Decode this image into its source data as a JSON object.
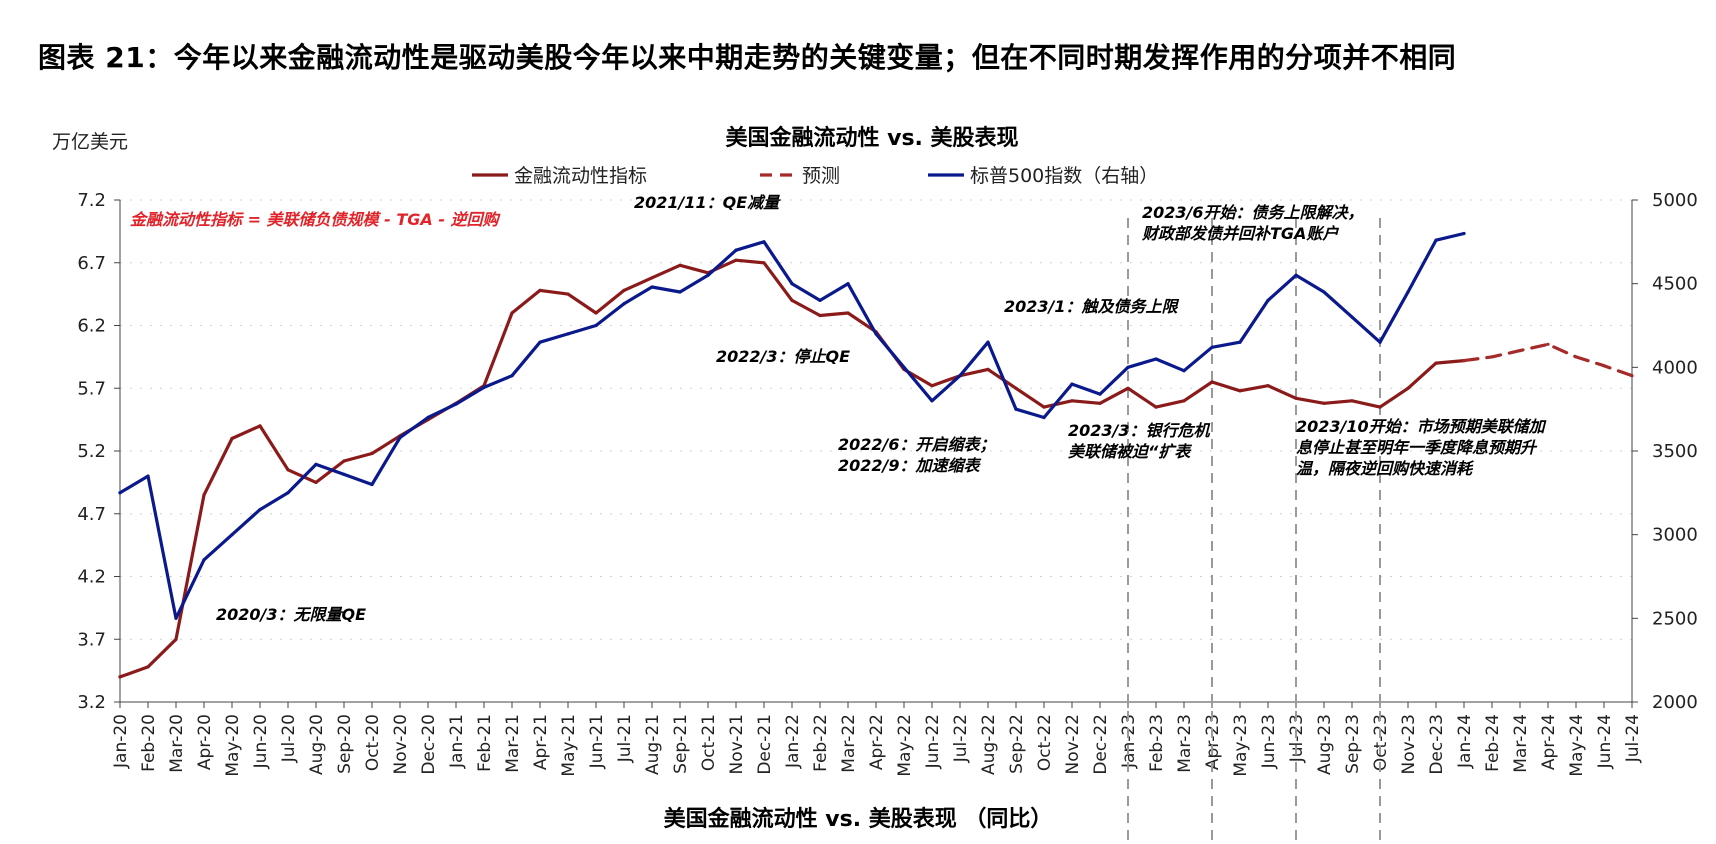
{
  "header": {
    "title": "图表 21：今年以来金融流动性是驱动美股今年以来中期走势的关键变量；但在不同时期发挥作用的分项并不相同"
  },
  "colors": {
    "liquidity": "#8B1A1A",
    "forecast": "#A52A2A",
    "sp500": "#0A1A8C",
    "formula": "#E0242A",
    "vline": "#9a9a9a"
  },
  "chart_data": {
    "type": "line",
    "title": "美国金融流动性 vs. 美股表现",
    "xlabel": "美国金融流动性 vs. 美股表现 （同比）",
    "ylabel_left": "万亿美元",
    "ylim_left": [
      3.2,
      7.2
    ],
    "ylim_right": [
      2000,
      5000
    ],
    "yticks_left": [
      "3.2",
      "3.7",
      "4.2",
      "4.7",
      "5.2",
      "5.7",
      "6.2",
      "6.7",
      "7.2"
    ],
    "yticks_right": [
      "2000",
      "2500",
      "3000",
      "3500",
      "4000",
      "4500",
      "5000"
    ],
    "x_ticks": [
      "Jan-20",
      "Feb-20",
      "Mar-20",
      "Apr-20",
      "May-20",
      "Jun-20",
      "Jul-20",
      "Aug-20",
      "Sep-20",
      "Oct-20",
      "Nov-20",
      "Dec-20",
      "Jan-21",
      "Feb-21",
      "Mar-21",
      "Apr-21",
      "May-21",
      "Jun-21",
      "Jul-21",
      "Aug-21",
      "Sep-21",
      "Oct-21",
      "Nov-21",
      "Dec-21",
      "Jan-22",
      "Feb-22",
      "Mar-22",
      "Apr-22",
      "May-22",
      "Jun-22",
      "Jul-22",
      "Aug-22",
      "Sep-22",
      "Oct-22",
      "Nov-22",
      "Dec-22",
      "Jan-23",
      "Feb-23",
      "Mar-23",
      "Apr-23",
      "May-23",
      "Jun-23",
      "Jul-23",
      "Aug-23",
      "Sep-23",
      "Oct-23",
      "Nov-23",
      "Dec-23",
      "Jan-24",
      "Feb-24",
      "Mar-24",
      "Apr-24",
      "May-24",
      "Jun-24",
      "Jul-24"
    ],
    "legend": [
      "金融流动性指标",
      "预测",
      "标普500指数（右轴）"
    ],
    "formula_note": "金融流动性指标 = 美联储负债规模 - TGA - 逆回购",
    "series": [
      {
        "name": "金融流动性指标",
        "axis": "left",
        "style": "solid",
        "x": [
          "2020-01",
          "2020-02",
          "2020-03",
          "2020-04",
          "2020-05",
          "2020-06",
          "2020-07",
          "2020-08",
          "2020-09",
          "2020-10",
          "2020-11",
          "2020-12",
          "2021-01",
          "2021-02",
          "2021-03",
          "2021-04",
          "2021-05",
          "2021-06",
          "2021-07",
          "2021-08",
          "2021-09",
          "2021-10",
          "2021-11",
          "2021-12",
          "2022-01",
          "2022-02",
          "2022-03",
          "2022-04",
          "2022-05",
          "2022-06",
          "2022-07",
          "2022-08",
          "2022-09",
          "2022-10",
          "2022-11",
          "2022-12",
          "2023-01",
          "2023-02",
          "2023-03",
          "2023-04",
          "2023-05",
          "2023-06",
          "2023-07",
          "2023-08",
          "2023-09",
          "2023-10",
          "2023-11",
          "2023-12",
          "2024-01"
        ],
        "values": [
          3.4,
          3.48,
          3.7,
          4.85,
          5.3,
          5.4,
          5.05,
          4.95,
          5.12,
          5.18,
          5.32,
          5.45,
          5.58,
          5.72,
          6.3,
          6.48,
          6.45,
          6.3,
          6.48,
          6.58,
          6.68,
          6.62,
          6.72,
          6.7,
          6.4,
          6.28,
          6.3,
          6.15,
          5.85,
          5.72,
          5.8,
          5.85,
          5.7,
          5.55,
          5.6,
          5.58,
          5.7,
          5.55,
          5.6,
          5.75,
          5.68,
          5.72,
          5.62,
          5.58,
          5.6,
          5.55,
          5.7,
          5.9,
          5.92
        ]
      },
      {
        "name": "预测",
        "axis": "left",
        "style": "dashed",
        "x": [
          "2024-01",
          "2024-02",
          "2024-03",
          "2024-04",
          "2024-05",
          "2024-06",
          "2024-07"
        ],
        "values": [
          5.92,
          5.95,
          6.0,
          6.05,
          5.95,
          5.88,
          5.8
        ]
      },
      {
        "name": "标普500指数（右轴）",
        "axis": "right",
        "style": "solid",
        "x": [
          "2020-01",
          "2020-02",
          "2020-03",
          "2020-04",
          "2020-05",
          "2020-06",
          "2020-07",
          "2020-08",
          "2020-09",
          "2020-10",
          "2020-11",
          "2020-12",
          "2021-01",
          "2021-02",
          "2021-03",
          "2021-04",
          "2021-05",
          "2021-06",
          "2021-07",
          "2021-08",
          "2021-09",
          "2021-10",
          "2021-11",
          "2021-12",
          "2022-01",
          "2022-02",
          "2022-03",
          "2022-04",
          "2022-05",
          "2022-06",
          "2022-07",
          "2022-08",
          "2022-09",
          "2022-10",
          "2022-11",
          "2022-12",
          "2023-01",
          "2023-02",
          "2023-03",
          "2023-04",
          "2023-05",
          "2023-06",
          "2023-07",
          "2023-08",
          "2023-09",
          "2023-10",
          "2023-11",
          "2023-12",
          "2024-01"
        ],
        "values": [
          3250,
          3350,
          2500,
          2850,
          3000,
          3150,
          3250,
          3420,
          3360,
          3300,
          3580,
          3700,
          3780,
          3880,
          3950,
          4150,
          4200,
          4250,
          4380,
          4480,
          4450,
          4550,
          4700,
          4750,
          4500,
          4400,
          4500,
          4200,
          4000,
          3800,
          3950,
          4150,
          3750,
          3700,
          3900,
          3840,
          4000,
          4050,
          3980,
          4120,
          4150,
          4400,
          4550,
          4450,
          4300,
          4150,
          4450,
          4760,
          4800
        ]
      }
    ]
  },
  "annotations": [
    {
      "id": "qe-unlimited",
      "lines": [
        "2020/3：无限量QE"
      ]
    },
    {
      "id": "qe-taper",
      "lines": [
        "2021/11：QE减量"
      ]
    },
    {
      "id": "qe-stop",
      "lines": [
        "2022/3：停止QE"
      ]
    },
    {
      "id": "qt",
      "lines": [
        "2022/6：开启缩表；",
        "2022/9：加速缩表"
      ]
    },
    {
      "id": "debt-ceiling",
      "lines": [
        "2023/1：触及债务上限"
      ]
    },
    {
      "id": "bank-crisis",
      "lines": [
        "2023/3：银行危机",
        "美联储被迫“扩表"
      ]
    },
    {
      "id": "tga-refill",
      "lines": [
        "2023/6开始：债务上限解决，",
        "财政部发债并回补TGA账户"
      ]
    },
    {
      "id": "rrp-drain",
      "lines": [
        "2023/10开始：市场预期美联储加",
        "息停止甚至明年一季度降息预期升",
        "温，隔夜逆回购快速消耗"
      ]
    }
  ]
}
